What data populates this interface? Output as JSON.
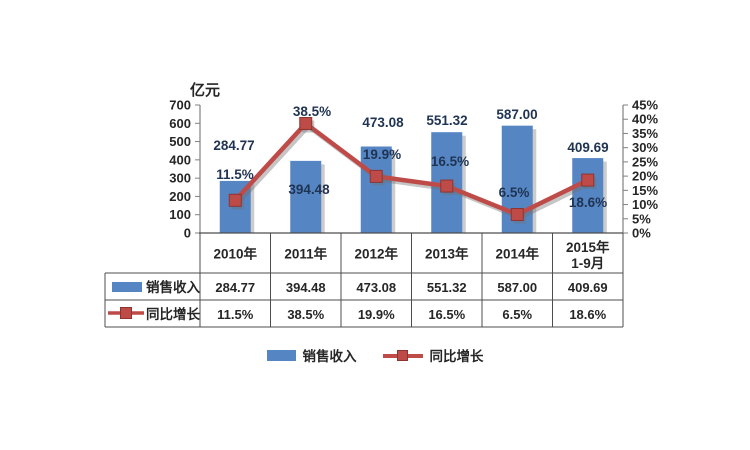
{
  "chart_data": {
    "type": "combo-bar-line",
    "title": "",
    "xlabel": "",
    "ylabel": "亿元",
    "grid": false,
    "legend_position": "bottom",
    "categories": [
      "2010年",
      "2011年",
      "2012年",
      "2013年",
      "2014年",
      "2015年 1-9月"
    ],
    "category_lines": [
      [
        "2010年"
      ],
      [
        "2011年"
      ],
      [
        "2012年"
      ],
      [
        "2013年"
      ],
      [
        "2014年"
      ],
      [
        "2015年",
        "1-9月"
      ]
    ],
    "series": [
      {
        "name": "销售收入",
        "type": "bar",
        "axis": "left",
        "color": "#5586C3",
        "values": [
          284.77,
          394.48,
          473.08,
          551.32,
          587.0,
          409.69
        ],
        "labels": [
          "284.77",
          "394.48",
          "473.08",
          "551.32",
          "587.00",
          "409.69"
        ]
      },
      {
        "name": "同比增长",
        "type": "line",
        "axis": "right",
        "color": "#BE4B48",
        "marker": "square",
        "values": [
          11.5,
          38.5,
          19.9,
          16.5,
          6.5,
          18.6
        ],
        "labels": [
          "11.5%",
          "38.5%",
          "19.9%",
          "16.5%",
          "6.5%",
          "18.6%"
        ]
      }
    ],
    "left_axis": {
      "min": 0,
      "max": 700,
      "step": 100,
      "tick_labels": [
        "700",
        "600",
        "500",
        "400",
        "300",
        "200",
        "100",
        "0"
      ]
    },
    "right_axis": {
      "min": 0,
      "max": 45,
      "step": 5,
      "tick_labels": [
        "45%",
        "40%",
        "35%",
        "30%",
        "25%",
        "20%",
        "15%",
        "10%",
        "5%",
        "0%"
      ]
    },
    "table": {
      "header_row": [
        "2010年",
        "2011年",
        "2012年",
        "2013年",
        "2014年",
        "2015年 1-9月"
      ],
      "rows": [
        {
          "label": "销售收入",
          "cells": [
            "284.77",
            "394.48",
            "473.08",
            "551.32",
            "587.00",
            "409.69"
          ]
        },
        {
          "label": "同比增长",
          "cells": [
            "11.5%",
            "38.5%",
            "19.9%",
            "16.5%",
            "6.5%",
            "18.6%"
          ]
        }
      ]
    },
    "colors": {
      "bar": "#5586C3",
      "line": "#BE4B48",
      "marker_edge": "#8d3431",
      "axis": "#808080",
      "table_border": "#4d4d4d",
      "data_label_text": "#1f3352",
      "tick_text": "#262626"
    }
  }
}
